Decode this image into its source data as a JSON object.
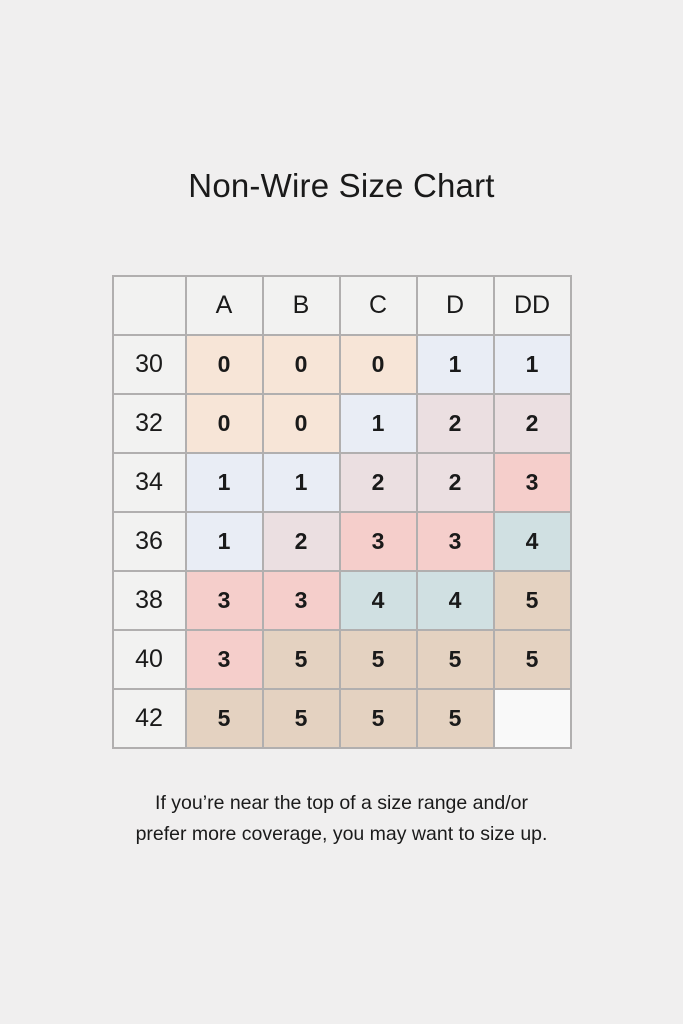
{
  "page": {
    "title": "Non-Wire Size Chart",
    "footer_lines": [
      "If you’re near the top of a size range and/or",
      "prefer more coverage, you may want to size up."
    ]
  },
  "chart_data": {
    "type": "table",
    "title": "Non-Wire Size Chart",
    "column_headers": [
      "",
      "A",
      "B",
      "C",
      "D",
      "DD"
    ],
    "row_headers": [
      "30",
      "32",
      "34",
      "36",
      "38",
      "40",
      "42"
    ],
    "rows": [
      [
        "0",
        "0",
        "0",
        "1",
        "1"
      ],
      [
        "0",
        "0",
        "1",
        "2",
        "2"
      ],
      [
        "1",
        "1",
        "2",
        "2",
        "3"
      ],
      [
        "1",
        "2",
        "3",
        "3",
        "4"
      ],
      [
        "3",
        "3",
        "4",
        "4",
        "5"
      ],
      [
        "3",
        "5",
        "5",
        "5",
        "5"
      ],
      [
        "5",
        "5",
        "5",
        "5",
        ""
      ]
    ],
    "value_colors": {
      "0": "#f7e5d7",
      "1": "#e9edf5",
      "2": "#ebdfe1",
      "3": "#f5cecb",
      "4": "#d0e0e2",
      "5": "#e4d2c1",
      "": "#f9f9f9"
    },
    "layout_hints": {
      "grid": true,
      "values_bold": true,
      "empty_cell": "row 42 / column DD"
    }
  },
  "colors": {
    "background": "#f0efef",
    "header_cell": "#f2f2f1",
    "border": "#b1afaf",
    "text": "#1a1a1a"
  }
}
